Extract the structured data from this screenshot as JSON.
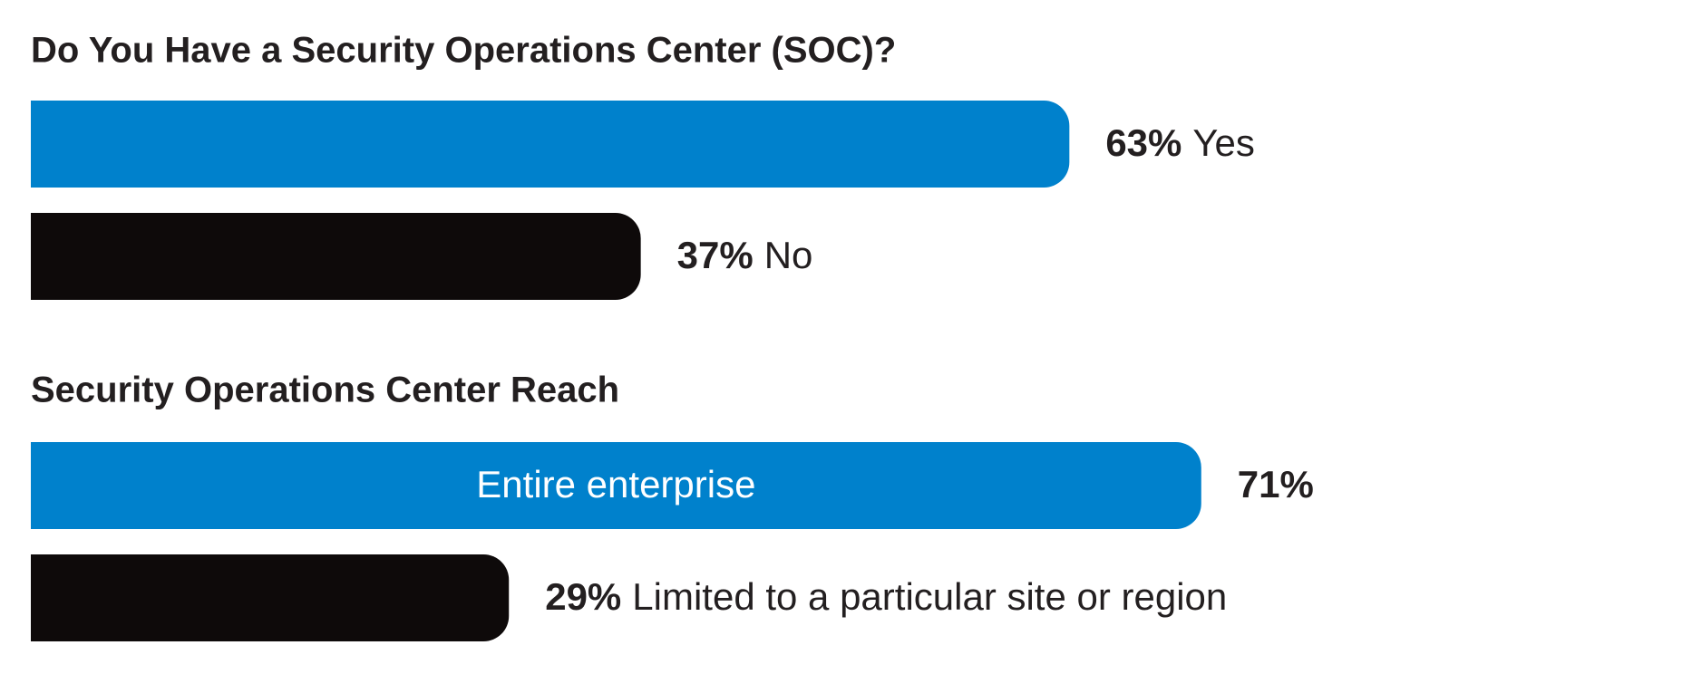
{
  "chart_data": [
    {
      "type": "bar",
      "title": "Do You Have a Security Operations Center (SOC)?",
      "categories": [
        "Yes",
        "No"
      ],
      "values": [
        63,
        37
      ],
      "value_labels": [
        "63%",
        "37%"
      ],
      "colors": [
        "#0081cc",
        "#0e0a0a"
      ],
      "xlim": [
        0,
        100
      ]
    },
    {
      "type": "bar",
      "title": "Security Operations Center Reach",
      "categories": [
        "Entire enterprise",
        "Limited to a particular site or region"
      ],
      "values": [
        71,
        29
      ],
      "value_labels": [
        "71%",
        "29%"
      ],
      "colors": [
        "#0081cc",
        "#0e0a0a"
      ],
      "xlim": [
        0,
        100
      ]
    }
  ]
}
